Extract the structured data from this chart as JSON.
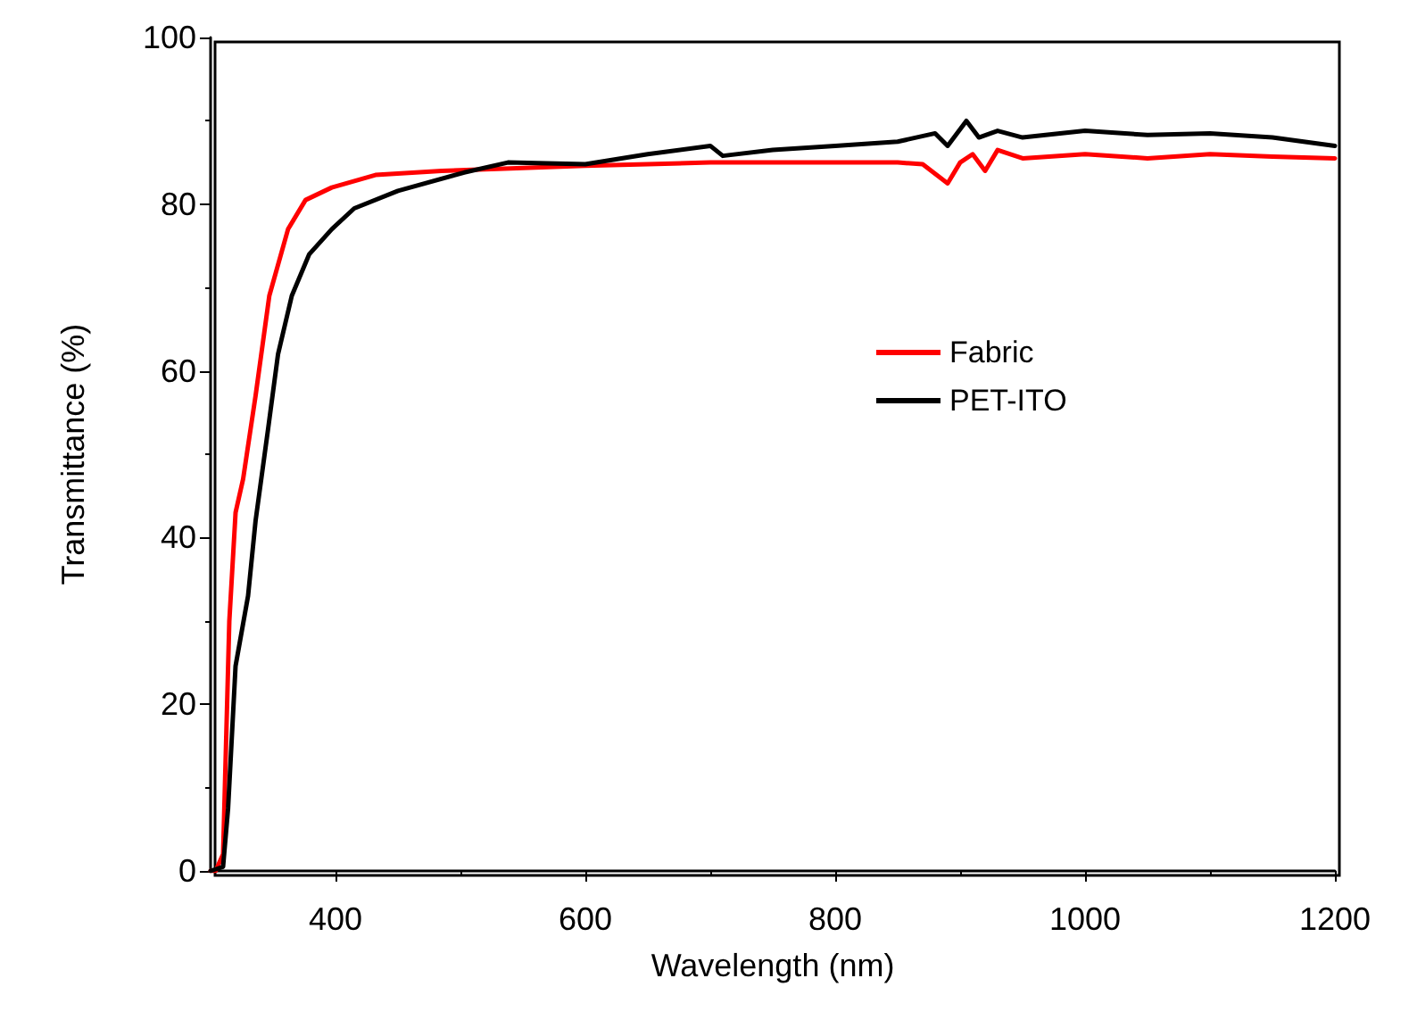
{
  "chart_data": {
    "type": "line",
    "xlabel": "Wavelength (nm)",
    "ylabel": "Transmittance (%)",
    "xlim": [
      300,
      1200
    ],
    "ylim": [
      0,
      100
    ],
    "xticks": [
      400,
      600,
      800,
      1000,
      1200
    ],
    "yticks": [
      0,
      20,
      40,
      60,
      80,
      100
    ],
    "grid": false,
    "legend": "right",
    "marker": "none",
    "line_style": "solid",
    "series": [
      {
        "name": "Fabric",
        "color": "#ff0000",
        "x": [
          300,
          304,
          310,
          315,
          320,
          326,
          336,
          347,
          362,
          376,
          397,
          432,
          485,
          540,
          600,
          650,
          700,
          750,
          800,
          850,
          870,
          890,
          900,
          910,
          920,
          930,
          950,
          1000,
          1050,
          1100,
          1150,
          1200
        ],
        "values": [
          0,
          0,
          2,
          30,
          43,
          47,
          57,
          69,
          77,
          80.5,
          82,
          83.5,
          84,
          84.3,
          84.6,
          84.8,
          85,
          85,
          85,
          85,
          84.8,
          82.5,
          85,
          86,
          84,
          86.5,
          85.5,
          86,
          85.5,
          86,
          85.7,
          85.5
        ]
      },
      {
        "name": "PET-ITO",
        "color": "#000000",
        "x": [
          300,
          310,
          314,
          320,
          330,
          336,
          346,
          354,
          365,
          379,
          397,
          415,
          450,
          503,
          538,
          600,
          650,
          700,
          710,
          750,
          800,
          850,
          880,
          890,
          905,
          915,
          930,
          950,
          1000,
          1050,
          1100,
          1150,
          1200
        ],
        "values": [
          0,
          0.5,
          7.5,
          24.6,
          33,
          42,
          53,
          62,
          69,
          74,
          77,
          79.5,
          81.6,
          83.8,
          85,
          84.8,
          86,
          87,
          85.8,
          86.5,
          87,
          87.5,
          88.5,
          87,
          90,
          88,
          88.8,
          88,
          88.8,
          88.3,
          88.5,
          88,
          87
        ]
      }
    ]
  }
}
